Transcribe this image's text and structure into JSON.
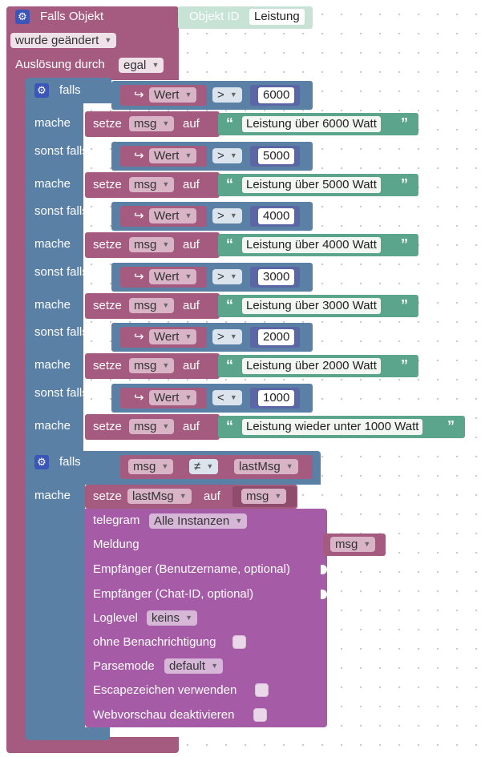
{
  "trigger": {
    "title": "Falls Objekt",
    "object_label": "Objekt ID",
    "object_value": "Leistung",
    "changed_dropdown": "wurde geändert",
    "source_label": "Auslösung durch",
    "source_dropdown": "egal"
  },
  "if_block": {
    "if_label": "falls",
    "elseif_label": "sonst falls",
    "do_label": "mache",
    "set_label": "setze",
    "to_label": "auf",
    "var_name": "msg",
    "value_name": "Wert",
    "branches": [
      {
        "op": ">",
        "value": "6000",
        "text": "Leistung über 6000 Watt"
      },
      {
        "op": ">",
        "value": "5000",
        "text": "Leistung über 5000 Watt"
      },
      {
        "op": ">",
        "value": "4000",
        "text": "Leistung über 4000 Watt"
      },
      {
        "op": ">",
        "value": "3000",
        "text": "Leistung über 3000 Watt"
      },
      {
        "op": ">",
        "value": "2000",
        "text": "Leistung über 2000 Watt"
      },
      {
        "op": "<",
        "value": "1000",
        "text": "Leistung wieder unter 1000 Watt"
      }
    ]
  },
  "compare_block": {
    "if_label": "falls",
    "do_label": "mache",
    "left": "msg",
    "op": "≠",
    "right": "lastMsg",
    "set_label": "setze",
    "set_var": "lastMsg",
    "to_label": "auf",
    "set_value": "msg"
  },
  "telegram": {
    "title": "telegram",
    "instance": "Alle Instanzen",
    "message_label": "Meldung",
    "message_value": "msg",
    "recipient_user_label": "Empfänger (Benutzername, optional)",
    "recipient_chat_label": "Empfänger (Chat-ID, optional)",
    "loglevel_label": "Loglevel",
    "loglevel_value": "keins",
    "silent_label": "ohne Benachrichtigung",
    "parsemode_label": "Parsemode",
    "parsemode_value": "default",
    "escape_label": "Escapezeichen verwenden",
    "preview_label": "Webvorschau deaktivieren"
  }
}
